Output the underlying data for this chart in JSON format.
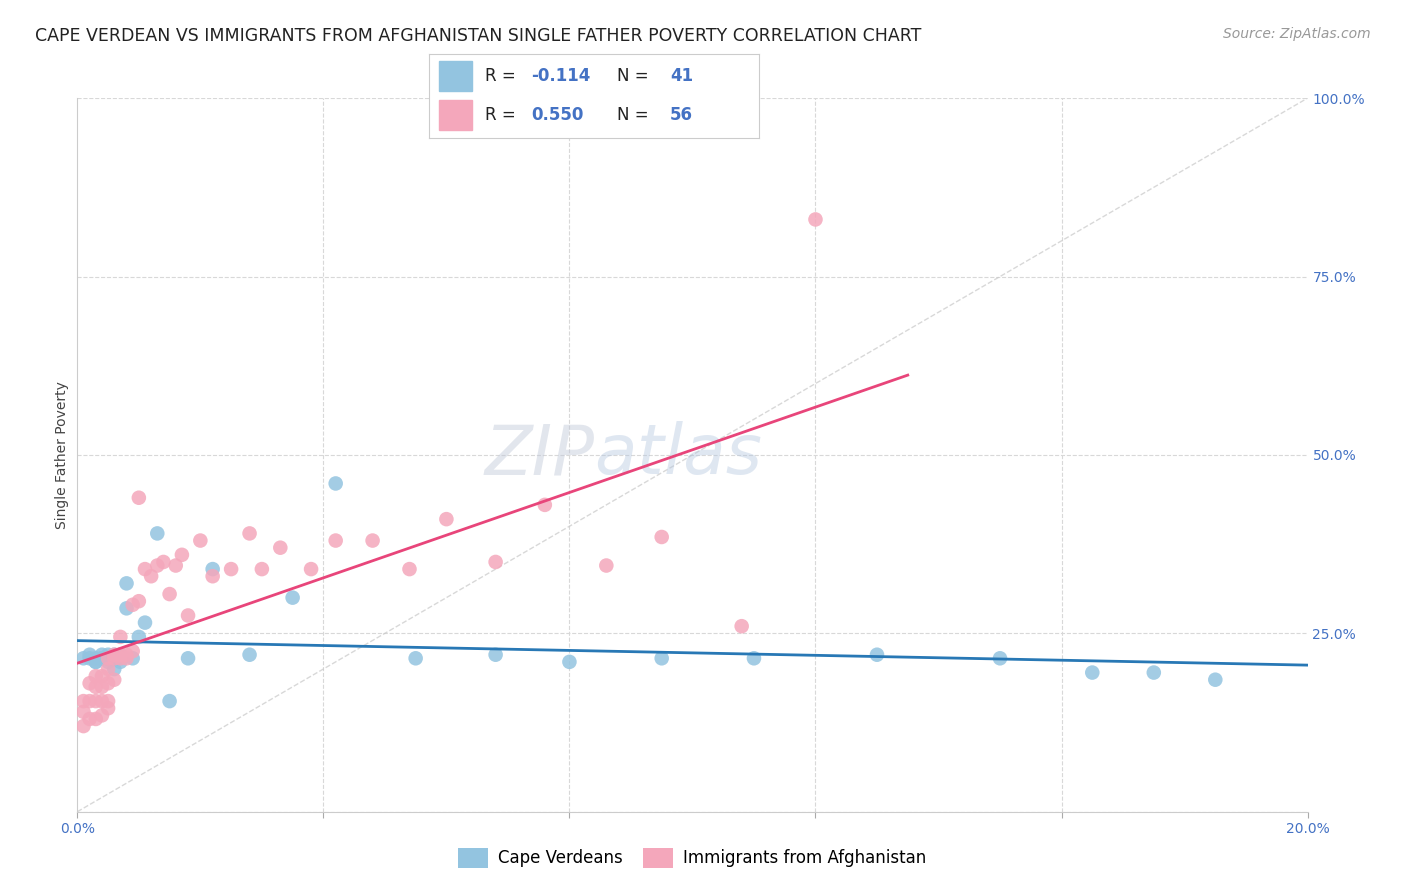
{
  "title": "CAPE VERDEAN VS IMMIGRANTS FROM AFGHANISTAN SINGLE FATHER POVERTY CORRELATION CHART",
  "source": "Source: ZipAtlas.com",
  "ylabel": "Single Father Poverty",
  "watermark": "ZIPatlas",
  "label_blue": "Cape Verdeans",
  "label_pink": "Immigrants from Afghanistan",
  "legend_blue_R_label": "R = ",
  "legend_blue_R_val": "-0.114",
  "legend_blue_N_label": "N = ",
  "legend_blue_N_val": "41",
  "legend_pink_R_val": "0.550",
  "legend_pink_N_val": "56",
  "xmin": 0.0,
  "xmax": 0.2,
  "ymin": 0.0,
  "ymax": 1.0,
  "yticks": [
    0.0,
    0.25,
    0.5,
    0.75,
    1.0
  ],
  "ytick_labels": [
    "",
    "25.0%",
    "50.0%",
    "75.0%",
    "100.0%"
  ],
  "xticks": [
    0.0,
    0.04,
    0.08,
    0.12,
    0.16,
    0.2
  ],
  "xtick_labels": [
    "0.0%",
    "",
    "",
    "",
    "",
    "20.0%"
  ],
  "blue_color": "#93c4e0",
  "pink_color": "#f4a7bb",
  "trend_blue_color": "#2878b5",
  "trend_pink_color": "#e8457a",
  "diag_color": "#c8c8c8",
  "right_axis_color": "#4472c4",
  "text_color": "#333333",
  "background_color": "#ffffff",
  "grid_color": "#d8d8d8",
  "blue_x": [
    0.001,
    0.002,
    0.002,
    0.003,
    0.003,
    0.003,
    0.004,
    0.004,
    0.004,
    0.005,
    0.005,
    0.005,
    0.005,
    0.006,
    0.006,
    0.006,
    0.007,
    0.007,
    0.007,
    0.008,
    0.008,
    0.009,
    0.01,
    0.011,
    0.013,
    0.015,
    0.018,
    0.022,
    0.028,
    0.035,
    0.042,
    0.055,
    0.068,
    0.08,
    0.095,
    0.11,
    0.13,
    0.15,
    0.165,
    0.175,
    0.185
  ],
  "blue_y": [
    0.215,
    0.215,
    0.22,
    0.21,
    0.21,
    0.215,
    0.215,
    0.215,
    0.22,
    0.21,
    0.215,
    0.215,
    0.22,
    0.2,
    0.215,
    0.22,
    0.21,
    0.215,
    0.22,
    0.285,
    0.32,
    0.215,
    0.245,
    0.265,
    0.39,
    0.155,
    0.215,
    0.34,
    0.22,
    0.3,
    0.46,
    0.215,
    0.22,
    0.21,
    0.215,
    0.215,
    0.22,
    0.215,
    0.195,
    0.195,
    0.185
  ],
  "pink_x": [
    0.001,
    0.001,
    0.001,
    0.002,
    0.002,
    0.002,
    0.003,
    0.003,
    0.003,
    0.003,
    0.004,
    0.004,
    0.004,
    0.004,
    0.005,
    0.005,
    0.005,
    0.005,
    0.005,
    0.006,
    0.006,
    0.006,
    0.007,
    0.007,
    0.007,
    0.008,
    0.008,
    0.009,
    0.009,
    0.01,
    0.01,
    0.011,
    0.012,
    0.013,
    0.014,
    0.015,
    0.016,
    0.017,
    0.018,
    0.02,
    0.022,
    0.025,
    0.028,
    0.03,
    0.033,
    0.038,
    0.042,
    0.048,
    0.054,
    0.06,
    0.068,
    0.076,
    0.086,
    0.095,
    0.108,
    0.12
  ],
  "pink_y": [
    0.12,
    0.14,
    0.155,
    0.13,
    0.155,
    0.18,
    0.13,
    0.155,
    0.175,
    0.19,
    0.135,
    0.155,
    0.175,
    0.19,
    0.145,
    0.155,
    0.18,
    0.2,
    0.215,
    0.185,
    0.215,
    0.22,
    0.215,
    0.22,
    0.245,
    0.215,
    0.22,
    0.225,
    0.29,
    0.295,
    0.44,
    0.34,
    0.33,
    0.345,
    0.35,
    0.305,
    0.345,
    0.36,
    0.275,
    0.38,
    0.33,
    0.34,
    0.39,
    0.34,
    0.37,
    0.34,
    0.38,
    0.38,
    0.34,
    0.41,
    0.35,
    0.43,
    0.345,
    0.385,
    0.26,
    0.83
  ],
  "title_fontsize": 12.5,
  "axis_label_fontsize": 10,
  "tick_fontsize": 10,
  "legend_fontsize": 12,
  "source_fontsize": 10,
  "watermark_fontsize": 50
}
